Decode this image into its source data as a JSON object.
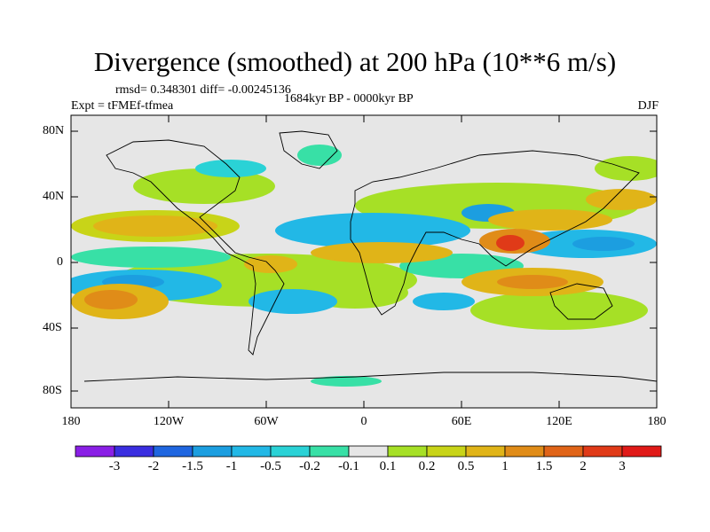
{
  "title": "Divergence (smoothed) at 200 hPa (10**6 m/s)",
  "stats": "rmsd= 0.348301 diff= -0.00245136",
  "experiment": "Expt = tFMEf-tfmea",
  "period": "1684kyr BP - 0000kyr BP",
  "season": "DJF",
  "lat_ticks": [
    "80N",
    "40N",
    "0",
    "40S",
    "80S"
  ],
  "lon_ticks": [
    "180",
    "120W",
    "60W",
    "0",
    "60E",
    "120E",
    "180"
  ],
  "colorbar": {
    "labels": [
      "-3",
      "-2",
      "-1.5",
      "-1",
      "-0.5",
      "-0.2",
      "-0.1",
      "0.1",
      "0.2",
      "0.5",
      "1",
      "1.5",
      "2",
      "3"
    ],
    "colors": [
      "#8a1fe6",
      "#3a2ee0",
      "#1f66e0",
      "#1c9ee0",
      "#22b8e6",
      "#2ad2d6",
      "#38e0a6",
      "#e6e6e6",
      "#a6e026",
      "#c8d418",
      "#e0b418",
      "#e08c18",
      "#e06418",
      "#e03a18",
      "#e01a18"
    ]
  }
}
